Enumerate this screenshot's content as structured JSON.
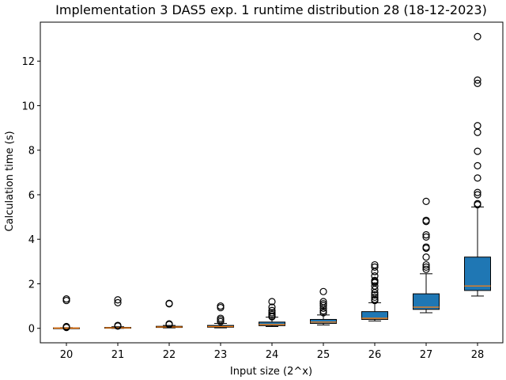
{
  "chart_data": {
    "type": "box",
    "title": "Implementation 3 DAS5 exp. 1 runtime distribution 28 (18-12-2023)",
    "xlabel": "Input size (2^x)",
    "ylabel": "Calculation time (s)",
    "ylim": [
      -0.65,
      13.75
    ],
    "yticks": [
      0,
      2,
      4,
      6,
      8,
      10,
      12
    ],
    "grid": false,
    "colors": {
      "box": "#1f77b4",
      "median": "#ff7f0e",
      "outline": "#000000"
    },
    "categories": [
      "20",
      "21",
      "22",
      "23",
      "24",
      "25",
      "26",
      "27",
      "28"
    ],
    "boxes": [
      {
        "label": "20",
        "whisker_low": 0.0,
        "q1": 0.0,
        "median": 0.01,
        "q3": 0.02,
        "whisker_high": 0.03,
        "outliers": [
          1.25,
          1.32,
          0.06,
          0.04,
          0.08
        ]
      },
      {
        "label": "21",
        "whisker_low": 0.0,
        "q1": 0.01,
        "median": 0.02,
        "q3": 0.04,
        "whisker_high": 0.07,
        "outliers": [
          1.15,
          1.28,
          0.1,
          0.13
        ]
      },
      {
        "label": "22",
        "whisker_low": 0.02,
        "q1": 0.04,
        "median": 0.06,
        "q3": 0.09,
        "whisker_high": 0.13,
        "outliers": [
          1.1,
          1.12,
          0.17,
          0.2
        ]
      },
      {
        "label": "23",
        "whisker_low": 0.02,
        "q1": 0.05,
        "median": 0.08,
        "q3": 0.13,
        "whisker_high": 0.22,
        "outliers": [
          0.93,
          1.0,
          0.3,
          0.38,
          0.45
        ]
      },
      {
        "label": "24",
        "whisker_low": 0.08,
        "q1": 0.12,
        "median": 0.17,
        "q3": 0.28,
        "whisker_high": 0.5,
        "outliers": [
          1.2,
          0.95,
          0.8,
          0.7,
          0.62,
          0.55,
          0.52
        ]
      },
      {
        "label": "25",
        "whisker_low": 0.15,
        "q1": 0.22,
        "median": 0.28,
        "q3": 0.4,
        "whisker_high": 0.6,
        "outliers": [
          1.65,
          1.2,
          1.1,
          1.02,
          0.9,
          0.78,
          0.7
        ]
      },
      {
        "label": "26",
        "whisker_low": 0.33,
        "q1": 0.4,
        "median": 0.45,
        "q3": 0.75,
        "whisker_high": 1.15,
        "outliers": [
          2.85,
          2.75,
          2.55,
          2.35,
          2.15,
          2.1,
          2.05,
          1.9,
          1.75,
          1.6,
          1.5,
          1.4,
          1.3,
          1.25
        ]
      },
      {
        "label": "27",
        "whisker_low": 0.7,
        "q1": 0.85,
        "median": 0.95,
        "q3": 1.55,
        "whisker_high": 2.45,
        "outliers": [
          5.7,
          4.85,
          4.8,
          4.2,
          4.1,
          3.65,
          3.6,
          3.2,
          2.85,
          2.75,
          2.65
        ]
      },
      {
        "label": "28",
        "whisker_low": 1.45,
        "q1": 1.7,
        "median": 1.9,
        "q3": 3.2,
        "whisker_high": 5.45,
        "outliers": [
          13.1,
          11.15,
          11.0,
          9.1,
          8.8,
          7.95,
          7.3,
          6.75,
          6.1,
          6.0,
          5.6,
          5.55
        ]
      }
    ]
  }
}
